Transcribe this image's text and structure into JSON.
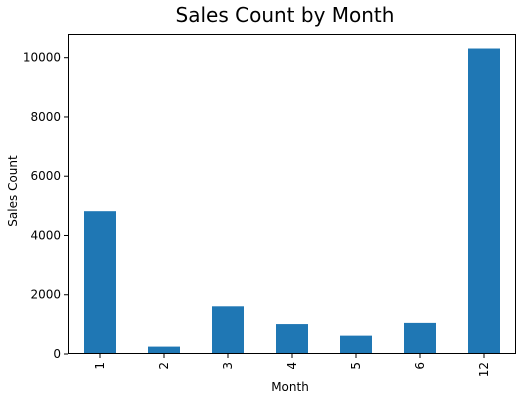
{
  "chart_data": {
    "type": "bar",
    "title": "Sales Count by Month",
    "xlabel": "Month",
    "ylabel": "Sales Count",
    "categories": [
      "1",
      "2",
      "3",
      "4",
      "5",
      "6",
      "12"
    ],
    "values": [
      4820,
      250,
      1610,
      1010,
      620,
      1050,
      10310
    ],
    "ylim": [
      0,
      10800
    ],
    "yticks": [
      "0",
      "2000",
      "4000",
      "6000",
      "8000",
      "10000"
    ],
    "ytick_values": [
      0,
      2000,
      4000,
      6000,
      8000,
      10000
    ],
    "grid": false,
    "legend": "none",
    "bar_color": "#1f77b4"
  }
}
